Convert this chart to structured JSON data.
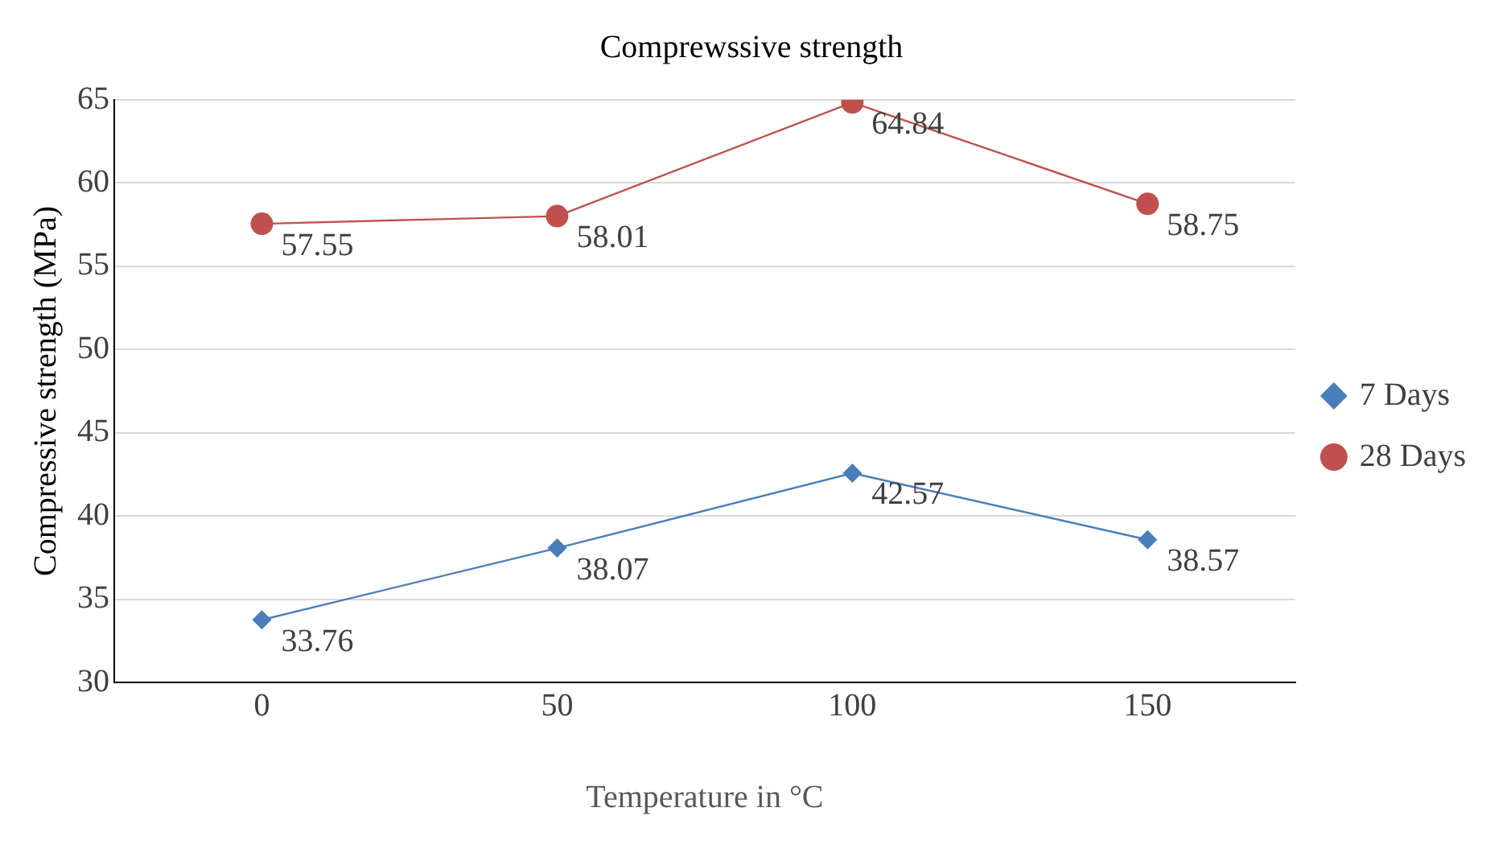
{
  "chart_data": {
    "type": "line",
    "title": "Comprewssive strength",
    "xlabel": "Temperature in °C",
    "ylabel": "Compressive strength (MPa)",
    "categories": [
      "0",
      "50",
      "100",
      "150"
    ],
    "series": [
      {
        "name": "7 Days",
        "color": "#4a7ebb",
        "marker": "diamond",
        "values": [
          33.76,
          38.07,
          42.57,
          38.57
        ]
      },
      {
        "name": "28 Days",
        "color": "#c0504d",
        "marker": "circle",
        "values": [
          57.55,
          58.01,
          64.84,
          58.75
        ]
      }
    ],
    "ylim": [
      30,
      65
    ],
    "yticks": [
      30,
      35,
      40,
      45,
      50,
      55,
      60,
      65
    ],
    "grid": "y",
    "legend": "right",
    "data_labels": true,
    "line_style": "solid"
  }
}
